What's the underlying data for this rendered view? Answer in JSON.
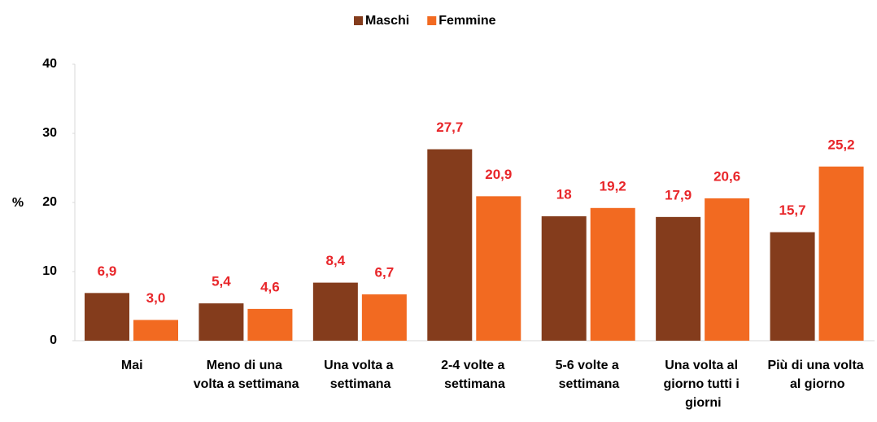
{
  "chart_data": {
    "type": "bar",
    "categories": [
      "Mai",
      "Meno di una volta a settimana",
      "Una volta a settimana",
      "2-4 volte a settimana",
      "5-6 volte a settimana",
      "Una volta al giorno tutti i giorni",
      "Più di una volta al giorno"
    ],
    "series": [
      {
        "name": "Maschi",
        "color": "#843c1c",
        "values": [
          6.9,
          5.4,
          8.4,
          27.7,
          18,
          17.9,
          15.7
        ],
        "value_labels": [
          "6,9",
          "5,4",
          "8,4",
          "27,7",
          "18",
          "17,9",
          "15,7"
        ]
      },
      {
        "name": "Femmine",
        "color": "#f26a21",
        "values": [
          3.0,
          4.6,
          6.7,
          20.9,
          19.2,
          20.6,
          25.2
        ],
        "value_labels": [
          "3,0",
          "4,6",
          "6,7",
          "20,9",
          "19,2",
          "20,6",
          "25,2"
        ]
      }
    ],
    "y_label": "%",
    "ylim": [
      0,
      40
    ],
    "yticks": [
      0,
      10,
      20,
      30,
      40
    ],
    "grid": false,
    "legend": "top"
  }
}
